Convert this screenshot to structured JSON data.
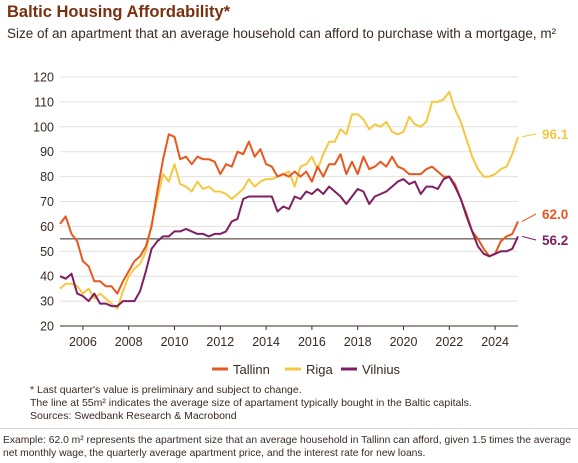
{
  "header": {
    "title": "Baltic Housing Affordability*",
    "subtitle": "Size of an apartment that an average household can afford to purchase with a mortgage, m²"
  },
  "notes": {
    "line1": "* Last quarter's value is preliminary and subject to change.",
    "line2": "The line at 55m² indicates the average size of apartament typically bought in the Baltic capitals.",
    "line3": "Sources: Swedbank Research & Macrobond"
  },
  "example": "Example: 62.0 m² represents the apartment size that an average household in Tallinn can afford, given 1.5 times the average net monthly wage, the quarterly average apartment price, and the interest rate for new loans.",
  "chart_data": {
    "type": "line",
    "title": "Baltic Housing Affordability*",
    "subtitle": "Size of an apartment that an average household can afford to purchase with a mortgage, m²",
    "ylim": [
      20,
      120
    ],
    "xlim": [
      2005.0,
      2025.0
    ],
    "yticks": [
      20,
      30,
      40,
      50,
      60,
      70,
      80,
      90,
      100,
      110,
      120
    ],
    "xticks": [
      2006,
      2008,
      2010,
      2012,
      2014,
      2016,
      2018,
      2020,
      2022,
      2024
    ],
    "grid": "horizontal",
    "legend": "bottom",
    "reference_line": {
      "value": 55
    },
    "end_labels": {
      "Riga": "96.1",
      "Tallinn": "62.0",
      "Vilnius": "56.2"
    },
    "series": [
      {
        "name": "Tallinn",
        "color": "#e8571e",
        "points": [
          [
            2005.0,
            61
          ],
          [
            2005.25,
            64
          ],
          [
            2005.5,
            57
          ],
          [
            2005.75,
            54
          ],
          [
            2006.0,
            46
          ],
          [
            2006.25,
            44
          ],
          [
            2006.5,
            38
          ],
          [
            2006.75,
            38
          ],
          [
            2007.0,
            36
          ],
          [
            2007.25,
            36
          ],
          [
            2007.5,
            33
          ],
          [
            2007.75,
            38
          ],
          [
            2008.0,
            42
          ],
          [
            2008.25,
            46
          ],
          [
            2008.5,
            48
          ],
          [
            2008.75,
            52
          ],
          [
            2009.0,
            60
          ],
          [
            2009.25,
            74
          ],
          [
            2009.5,
            87
          ],
          [
            2009.75,
            97
          ],
          [
            2010.0,
            96
          ],
          [
            2010.25,
            87
          ],
          [
            2010.5,
            88
          ],
          [
            2010.75,
            85
          ],
          [
            2011.0,
            88
          ],
          [
            2011.25,
            87
          ],
          [
            2011.5,
            87
          ],
          [
            2011.75,
            86
          ],
          [
            2012.0,
            81
          ],
          [
            2012.25,
            85
          ],
          [
            2012.5,
            84
          ],
          [
            2012.75,
            90
          ],
          [
            2013.0,
            89
          ],
          [
            2013.25,
            94
          ],
          [
            2013.5,
            88
          ],
          [
            2013.75,
            91
          ],
          [
            2014.0,
            85
          ],
          [
            2014.25,
            84
          ],
          [
            2014.5,
            80
          ],
          [
            2014.75,
            81
          ],
          [
            2015.0,
            80
          ],
          [
            2015.25,
            82
          ],
          [
            2015.5,
            80
          ],
          [
            2015.75,
            82
          ],
          [
            2016.0,
            78
          ],
          [
            2016.25,
            84
          ],
          [
            2016.5,
            80
          ],
          [
            2016.75,
            85
          ],
          [
            2017.0,
            85
          ],
          [
            2017.25,
            89
          ],
          [
            2017.5,
            81
          ],
          [
            2017.75,
            86
          ],
          [
            2018.0,
            81
          ],
          [
            2018.25,
            88
          ],
          [
            2018.5,
            83
          ],
          [
            2018.75,
            84
          ],
          [
            2019.0,
            86
          ],
          [
            2019.25,
            84
          ],
          [
            2019.5,
            88
          ],
          [
            2019.75,
            84
          ],
          [
            2020.0,
            83
          ],
          [
            2020.25,
            81
          ],
          [
            2020.5,
            81
          ],
          [
            2020.75,
            81
          ],
          [
            2021.0,
            83
          ],
          [
            2021.25,
            84
          ],
          [
            2021.5,
            82
          ],
          [
            2021.75,
            80
          ],
          [
            2022.0,
            80
          ],
          [
            2022.25,
            77
          ],
          [
            2022.5,
            71
          ],
          [
            2022.75,
            65
          ],
          [
            2023.0,
            58
          ],
          [
            2023.25,
            55
          ],
          [
            2023.5,
            51
          ],
          [
            2023.75,
            48
          ],
          [
            2024.0,
            49
          ],
          [
            2024.25,
            54
          ],
          [
            2024.5,
            56
          ],
          [
            2024.75,
            57
          ],
          [
            2025.0,
            62
          ]
        ]
      },
      {
        "name": "Riga",
        "color": "#f5c842",
        "points": [
          [
            2005.0,
            35
          ],
          [
            2005.25,
            37
          ],
          [
            2005.5,
            37
          ],
          [
            2005.75,
            36
          ],
          [
            2006.0,
            33
          ],
          [
            2006.25,
            35
          ],
          [
            2006.5,
            31
          ],
          [
            2006.75,
            33
          ],
          [
            2007.0,
            31
          ],
          [
            2007.25,
            29
          ],
          [
            2007.5,
            27
          ],
          [
            2007.75,
            34
          ],
          [
            2008.0,
            40
          ],
          [
            2008.25,
            43
          ],
          [
            2008.5,
            45
          ],
          [
            2008.75,
            50
          ],
          [
            2009.0,
            61
          ],
          [
            2009.25,
            71
          ],
          [
            2009.5,
            81
          ],
          [
            2009.75,
            78
          ],
          [
            2010.0,
            85
          ],
          [
            2010.25,
            77
          ],
          [
            2010.5,
            76
          ],
          [
            2010.75,
            74
          ],
          [
            2011.0,
            78
          ],
          [
            2011.25,
            75
          ],
          [
            2011.5,
            76
          ],
          [
            2011.75,
            74
          ],
          [
            2012.0,
            74
          ],
          [
            2012.25,
            73
          ],
          [
            2012.5,
            71
          ],
          [
            2012.75,
            73
          ],
          [
            2013.0,
            75
          ],
          [
            2013.25,
            79
          ],
          [
            2013.5,
            76
          ],
          [
            2013.75,
            78
          ],
          [
            2014.0,
            79
          ],
          [
            2014.25,
            79
          ],
          [
            2014.5,
            80
          ],
          [
            2014.75,
            81
          ],
          [
            2015.0,
            82
          ],
          [
            2015.25,
            76
          ],
          [
            2015.5,
            84
          ],
          [
            2015.75,
            85
          ],
          [
            2016.0,
            88
          ],
          [
            2016.25,
            83
          ],
          [
            2016.5,
            89
          ],
          [
            2016.75,
            94
          ],
          [
            2017.0,
            94
          ],
          [
            2017.25,
            99
          ],
          [
            2017.5,
            97
          ],
          [
            2017.75,
            105
          ],
          [
            2018.0,
            105
          ],
          [
            2018.25,
            103
          ],
          [
            2018.5,
            99
          ],
          [
            2018.75,
            101
          ],
          [
            2019.0,
            100
          ],
          [
            2019.25,
            102
          ],
          [
            2019.5,
            98
          ],
          [
            2019.75,
            97
          ],
          [
            2020.0,
            98
          ],
          [
            2020.25,
            104
          ],
          [
            2020.5,
            101
          ],
          [
            2020.75,
            100
          ],
          [
            2021.0,
            102
          ],
          [
            2021.25,
            110
          ],
          [
            2021.5,
            110
          ],
          [
            2021.75,
            111
          ],
          [
            2022.0,
            114
          ],
          [
            2022.25,
            107
          ],
          [
            2022.5,
            102
          ],
          [
            2022.75,
            95
          ],
          [
            2023.0,
            88
          ],
          [
            2023.25,
            83
          ],
          [
            2023.5,
            80
          ],
          [
            2023.75,
            80
          ],
          [
            2024.0,
            81
          ],
          [
            2024.25,
            83
          ],
          [
            2024.5,
            84
          ],
          [
            2024.75,
            89
          ],
          [
            2025.0,
            96
          ]
        ]
      },
      {
        "name": "Vilnius",
        "color": "#7e1f63",
        "points": [
          [
            2005.0,
            40
          ],
          [
            2005.25,
            39
          ],
          [
            2005.5,
            41
          ],
          [
            2005.75,
            33
          ],
          [
            2006.0,
            32
          ],
          [
            2006.25,
            30
          ],
          [
            2006.5,
            33
          ],
          [
            2006.75,
            29
          ],
          [
            2007.0,
            29
          ],
          [
            2007.25,
            28
          ],
          [
            2007.5,
            28
          ],
          [
            2007.75,
            30
          ],
          [
            2008.0,
            30
          ],
          [
            2008.25,
            30
          ],
          [
            2008.5,
            34
          ],
          [
            2008.75,
            42
          ],
          [
            2009.0,
            51
          ],
          [
            2009.25,
            54
          ],
          [
            2009.5,
            56
          ],
          [
            2009.75,
            56
          ],
          [
            2010.0,
            58
          ],
          [
            2010.25,
            58
          ],
          [
            2010.5,
            59
          ],
          [
            2010.75,
            58
          ],
          [
            2011.0,
            57
          ],
          [
            2011.25,
            57
          ],
          [
            2011.5,
            56
          ],
          [
            2011.75,
            57
          ],
          [
            2012.0,
            57
          ],
          [
            2012.25,
            58
          ],
          [
            2012.5,
            62
          ],
          [
            2012.75,
            63
          ],
          [
            2013.0,
            71
          ],
          [
            2013.25,
            72
          ],
          [
            2013.5,
            72
          ],
          [
            2013.75,
            72
          ],
          [
            2014.0,
            72
          ],
          [
            2014.25,
            72
          ],
          [
            2014.5,
            66
          ],
          [
            2014.75,
            68
          ],
          [
            2015.0,
            67
          ],
          [
            2015.25,
            72
          ],
          [
            2015.5,
            71
          ],
          [
            2015.75,
            74
          ],
          [
            2016.0,
            73
          ],
          [
            2016.25,
            75
          ],
          [
            2016.5,
            73
          ],
          [
            2016.75,
            76
          ],
          [
            2017.0,
            74
          ],
          [
            2017.25,
            72
          ],
          [
            2017.5,
            69
          ],
          [
            2017.75,
            72
          ],
          [
            2018.0,
            75
          ],
          [
            2018.25,
            74
          ],
          [
            2018.5,
            69
          ],
          [
            2018.75,
            72
          ],
          [
            2019.0,
            73
          ],
          [
            2019.25,
            74
          ],
          [
            2019.5,
            76
          ],
          [
            2019.75,
            78
          ],
          [
            2020.0,
            79
          ],
          [
            2020.25,
            77
          ],
          [
            2020.5,
            78
          ],
          [
            2020.75,
            73
          ],
          [
            2021.0,
            76
          ],
          [
            2021.25,
            76
          ],
          [
            2021.5,
            75
          ],
          [
            2021.75,
            79
          ],
          [
            2022.0,
            80
          ],
          [
            2022.25,
            76
          ],
          [
            2022.5,
            71
          ],
          [
            2022.75,
            64
          ],
          [
            2023.0,
            58
          ],
          [
            2023.25,
            52
          ],
          [
            2023.5,
            49
          ],
          [
            2023.75,
            48
          ],
          [
            2024.0,
            49
          ],
          [
            2024.25,
            50
          ],
          [
            2024.5,
            50
          ],
          [
            2024.75,
            51
          ],
          [
            2025.0,
            56
          ]
        ]
      }
    ]
  }
}
